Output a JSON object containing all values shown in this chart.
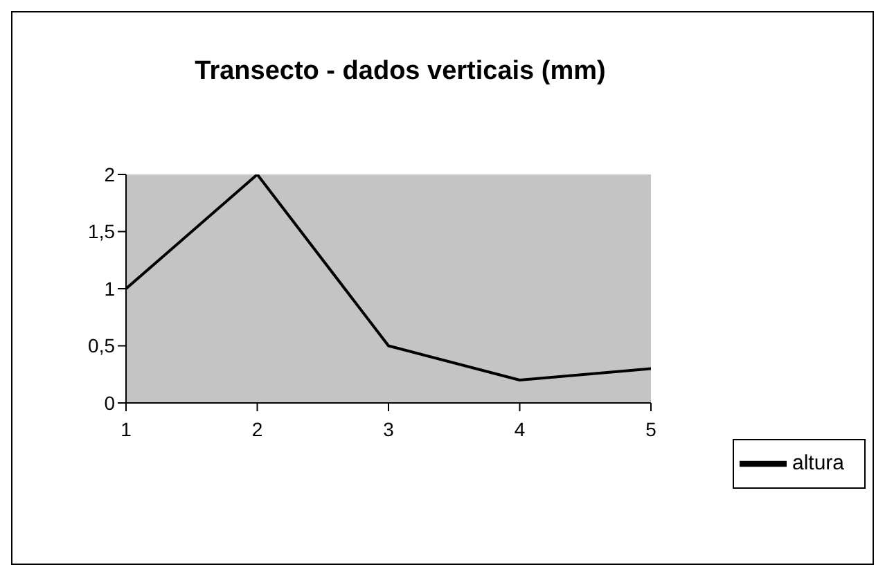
{
  "chart_data": {
    "type": "line",
    "title": "Transecto - dados verticais (mm)",
    "x": [
      1,
      2,
      3,
      4,
      5
    ],
    "series": [
      {
        "name": "altura",
        "color": "#000000",
        "values": [
          1,
          2,
          0.5,
          0.2,
          0.3
        ]
      }
    ],
    "xlim": [
      1,
      5
    ],
    "xticks": [
      1,
      2,
      3,
      4,
      5
    ],
    "ylim": [
      0,
      2
    ],
    "yticks": [
      0,
      {
        "value": 0.5,
        "label": "0,5"
      },
      1,
      {
        "value": 1.5,
        "label": "1,5"
      },
      2
    ],
    "grid": false,
    "legend": "bottom right",
    "marker": "none",
    "line_style": "solid"
  }
}
